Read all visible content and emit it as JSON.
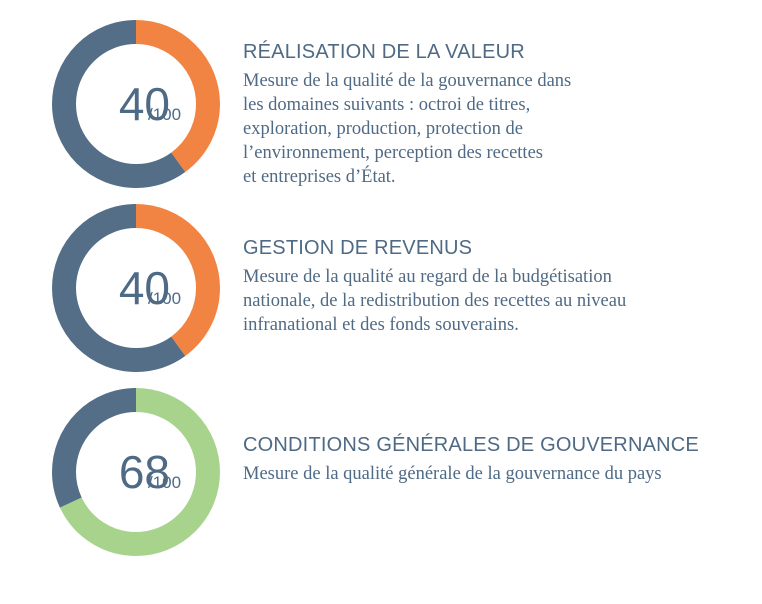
{
  "chart_data": [
    {
      "type": "pie",
      "score": 40,
      "max": 100,
      "value_label": "40",
      "max_label": "/100",
      "slices": [
        {
          "name": "score",
          "value": 40,
          "color": "#f28443"
        },
        {
          "name": "remainder",
          "value": 60,
          "color": "#546e87"
        }
      ],
      "title": "RÉALISATION DE LA VALEUR",
      "description_lines": [
        "Mesure de la qualité de la gouvernance dans",
        "les domaines suivants : octroi de titres,",
        "exploration, production, protection de",
        "l’environnement, perception des recettes",
        "et entreprises d’État."
      ]
    },
    {
      "type": "pie",
      "score": 40,
      "max": 100,
      "value_label": "40",
      "max_label": "/100",
      "slices": [
        {
          "name": "score",
          "value": 40,
          "color": "#f28443"
        },
        {
          "name": "remainder",
          "value": 60,
          "color": "#546e87"
        }
      ],
      "title": "GESTION DE REVENUS",
      "description_lines": [
        "Mesure de la qualité au regard de la budgétisation",
        "nationale, de la redistribution des recettes au niveau",
        "infranational et des fonds souverains."
      ]
    },
    {
      "type": "pie",
      "score": 68,
      "max": 100,
      "value_label": "68",
      "max_label": "/100",
      "slices": [
        {
          "name": "score",
          "value": 68,
          "color": "#a8d38d"
        },
        {
          "name": "remainder",
          "value": 32,
          "color": "#546e87"
        }
      ],
      "title": "CONDITIONS GÉNÉRALES DE GOUVERNANCE",
      "description_lines": [
        "Mesure de la qualité générale de la gouvernance du pays"
      ]
    }
  ]
}
